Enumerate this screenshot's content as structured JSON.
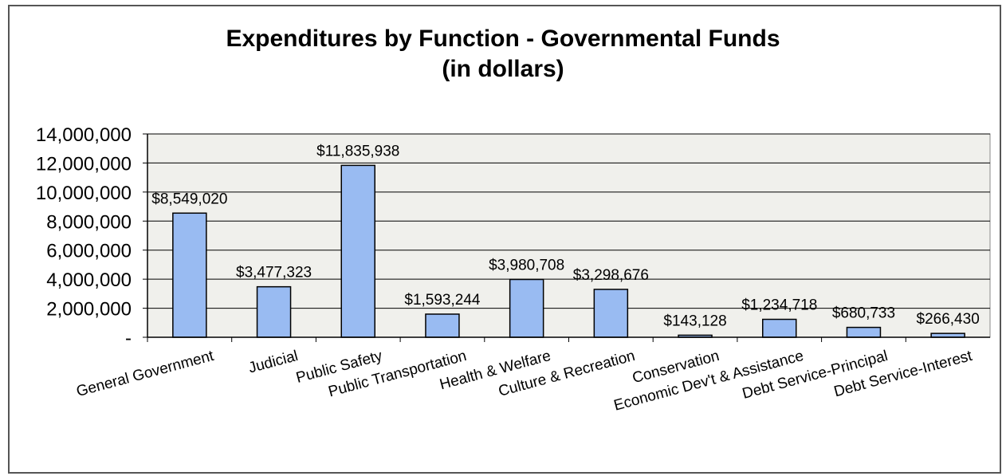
{
  "chart_data": {
    "type": "bar",
    "title": "Expenditures by Function - Governmental Funds",
    "subtitle": "(in dollars)",
    "categories": [
      "General Government",
      "Judicial",
      "Public Safety",
      "Public Transportation",
      "Health & Welfare",
      "Culture & Recreation",
      "Conservation",
      "Economic Dev't & Assistance",
      "Debt Service-Principal",
      "Debt Service-Interest"
    ],
    "values": [
      8549020,
      3477323,
      11835938,
      1593244,
      3980708,
      3298676,
      143128,
      1234718,
      680733,
      266430
    ],
    "data_labels": [
      "$8,549,020",
      "$3,477,323",
      "$11,835,938",
      "$1,593,244",
      "$3,980,708",
      "$3,298,676",
      "$143,128",
      "$1,234,718",
      "$680,733",
      "$266,430"
    ],
    "y_ticks": [
      "-",
      "2,000,000",
      "4,000,000",
      "6,000,000",
      "8,000,000",
      "10,000,000",
      "12,000,000",
      "14,000,000"
    ],
    "ylim": [
      0,
      14000000
    ],
    "grid": true,
    "legend": "none",
    "colors": {
      "bar": "#99bbf2",
      "plot_bg": "#f0f0ec",
      "grid": "#000000"
    }
  }
}
